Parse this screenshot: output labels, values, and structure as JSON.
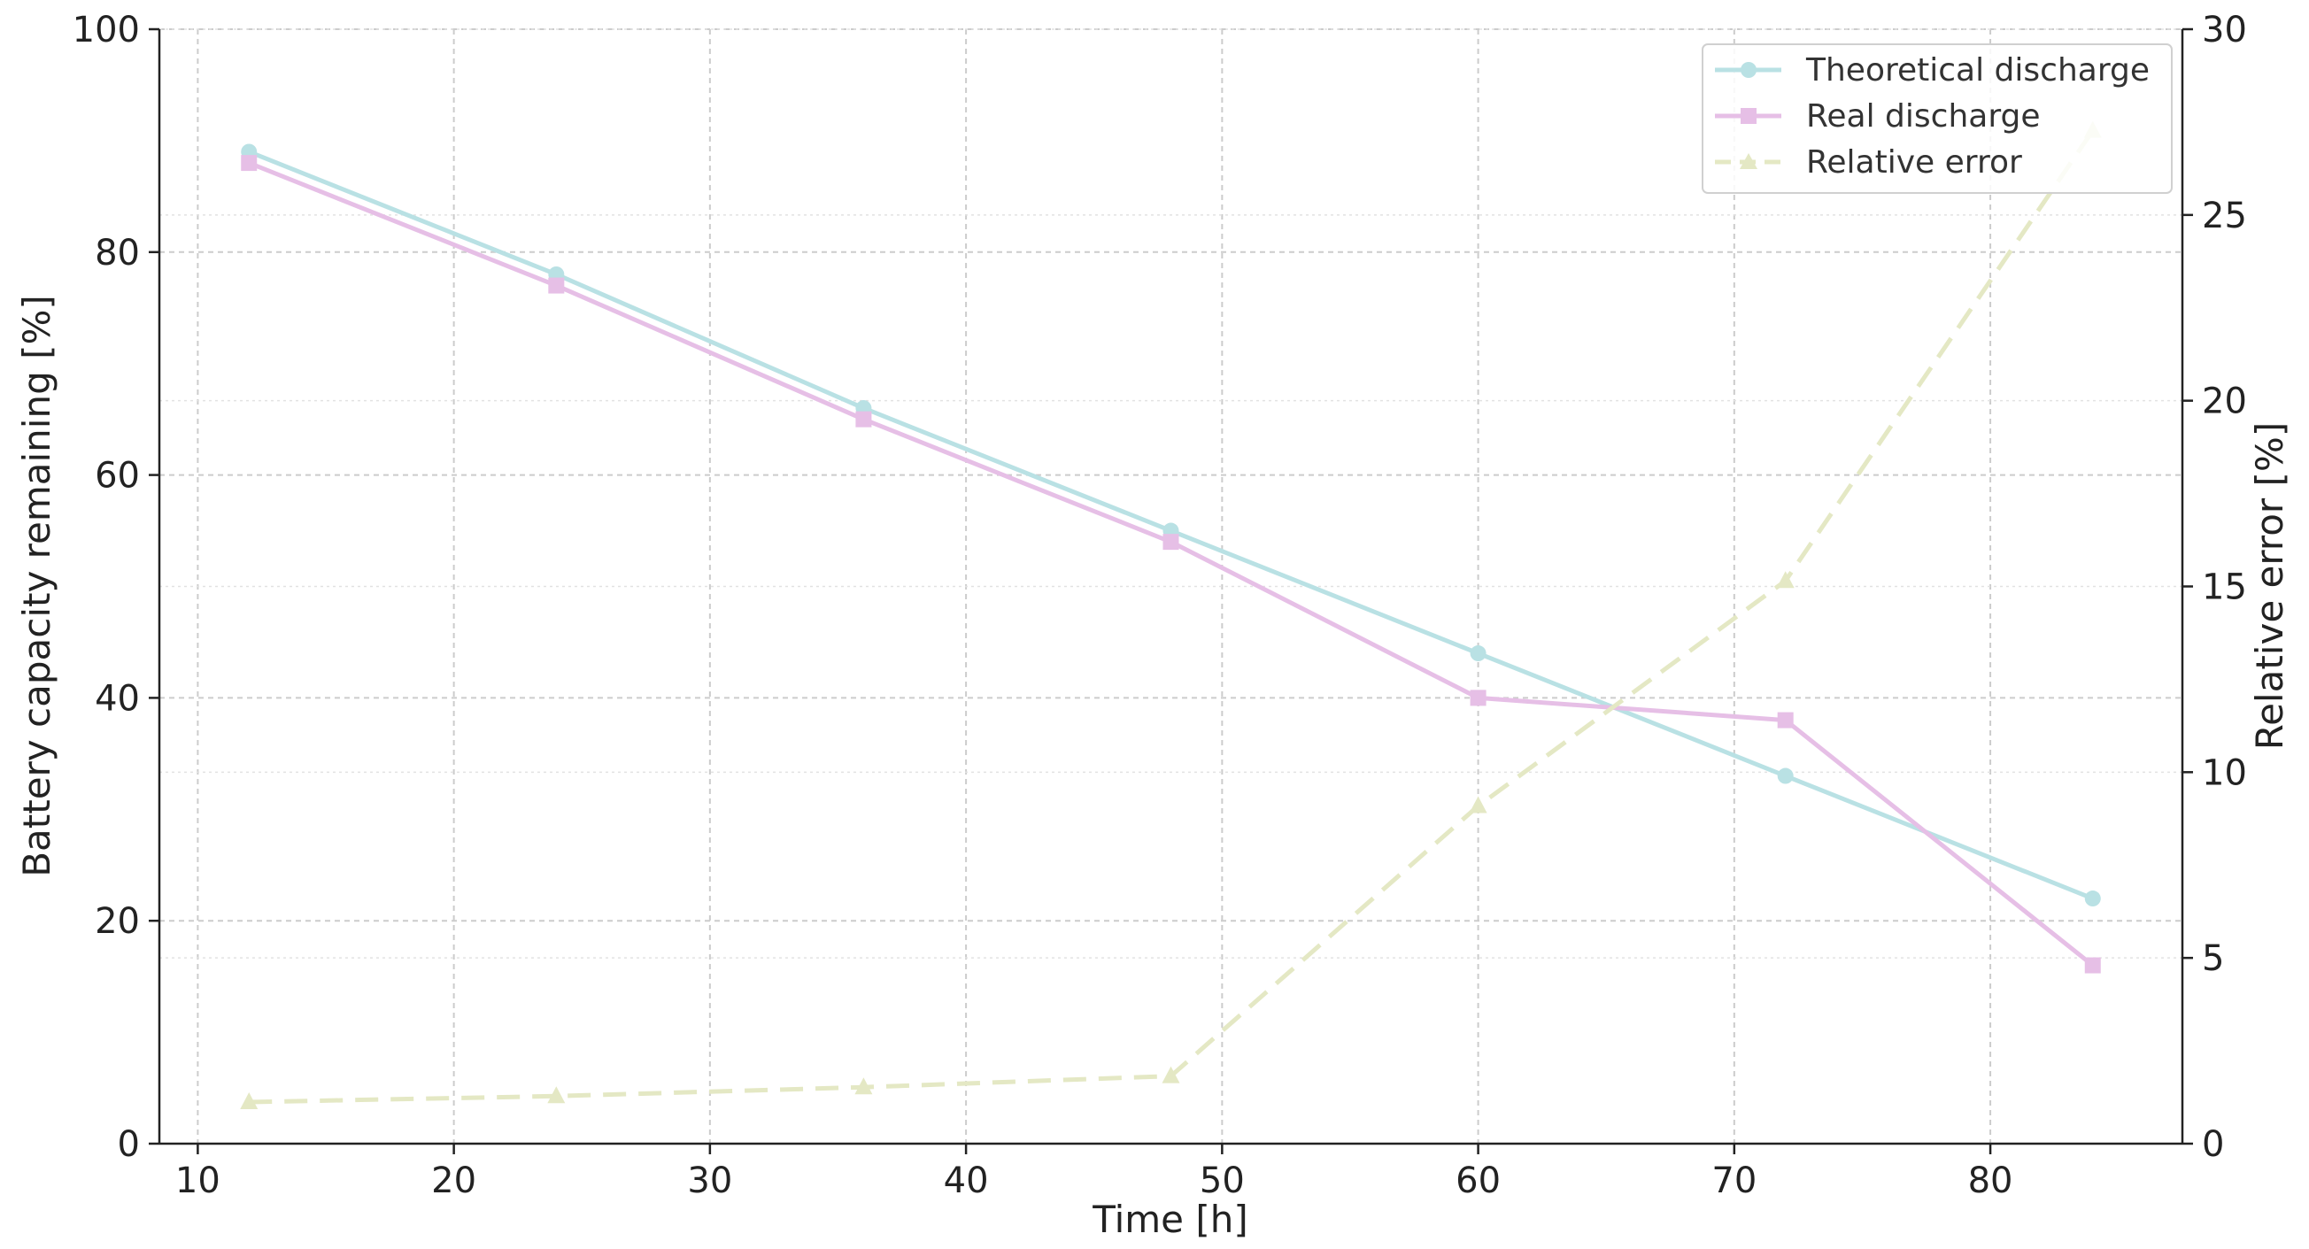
{
  "chart_data": {
    "type": "line",
    "title": "",
    "xlabel": "Time [h]",
    "ylabel_left": "Battery capacity remaining [%]",
    "ylabel_right": "Relative error [%]",
    "x": [
      12,
      24,
      36,
      48,
      60,
      72,
      84
    ],
    "xlim": [
      8.5,
      87.5
    ],
    "ylim_left": [
      0,
      100
    ],
    "ylim_right": [
      0,
      30
    ],
    "x_ticks": [
      10,
      20,
      30,
      40,
      50,
      60,
      70,
      80
    ],
    "y_left_ticks": [
      0,
      20,
      40,
      60,
      80,
      100
    ],
    "y_right_ticks": [
      0,
      5,
      10,
      15,
      20,
      25,
      30
    ],
    "grid": true,
    "legend_position": "top-right",
    "series": [
      {
        "name": "Theoretical discharge",
        "axis": "left",
        "marker": "circle",
        "line_style": "solid",
        "color": "#b9e1e4",
        "values": [
          89,
          78,
          66,
          55,
          44,
          33,
          22
        ]
      },
      {
        "name": "Real discharge",
        "axis": "left",
        "marker": "square",
        "line_style": "solid",
        "color": "#e6bfe6",
        "values": [
          88,
          77,
          65,
          54,
          40,
          38,
          16
        ]
      },
      {
        "name": "Relative error",
        "axis": "right",
        "marker": "triangle",
        "line_style": "dashed",
        "color": "#e4e8c4",
        "values": [
          1.12,
          1.28,
          1.52,
          1.82,
          9.09,
          15.15,
          27.27
        ]
      }
    ]
  }
}
